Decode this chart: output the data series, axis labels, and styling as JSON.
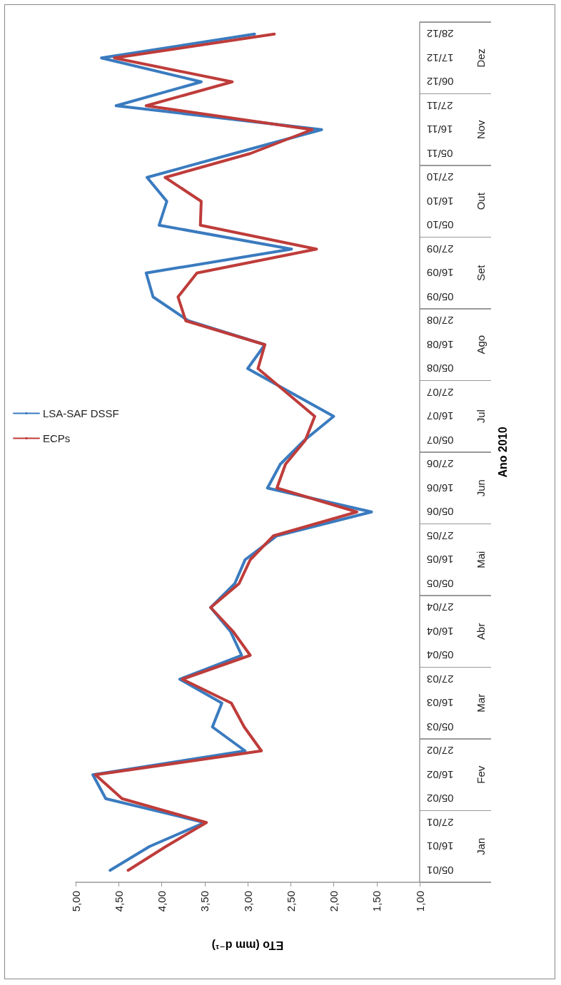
{
  "chart_data": {
    "type": "line",
    "orientation": "horizontal",
    "categories": [
      "28/12",
      "17/12",
      "06/12",
      "27/11",
      "16/11",
      "05/11",
      "27/10",
      "16/10",
      "05/10",
      "27/09",
      "16/09",
      "05/09",
      "27/08",
      "16/08",
      "05/08",
      "27/07",
      "16/07",
      "05/07",
      "27/06",
      "16/06",
      "05/06",
      "27/05",
      "16/05",
      "05/05",
      "27/04",
      "16/04",
      "05/04",
      "27/03",
      "16/03",
      "05/03",
      "27/02",
      "16/02",
      "05/02",
      "27/01",
      "16/01",
      "05/01"
    ],
    "annotations": [
      "Dez",
      "Nov",
      "Out",
      "Set",
      "Ago",
      "Jul",
      "Jun",
      "Mai",
      "Abr",
      "Mar",
      "Fev",
      "Jan"
    ],
    "ylabel": "Ano 2010",
    "xlabel": "ETo (mm d⁻¹)",
    "series": [
      {
        "name": "LSA-SAF DSSF",
        "color": "#3a7bbf",
        "values": [
          2.92,
          4.7,
          3.54,
          4.53,
          2.14,
          3.16,
          4.17,
          3.94,
          4.03,
          2.49,
          4.18,
          4.1,
          3.69,
          2.8,
          3.0,
          2.5,
          2.0,
          2.34,
          2.62,
          2.77,
          1.56,
          2.66,
          3.03,
          3.15,
          3.43,
          3.2,
          3.07,
          3.79,
          3.3,
          3.41,
          3.03,
          4.8,
          4.65,
          3.5,
          4.14,
          4.6
        ]
      },
      {
        "name": "ECPs",
        "color": "#be3c3a",
        "values": [
          2.69,
          4.55,
          3.18,
          4.18,
          2.25,
          2.97,
          3.96,
          3.54,
          3.55,
          2.2,
          3.59,
          3.81,
          3.72,
          2.8,
          2.88,
          2.55,
          2.22,
          2.33,
          2.56,
          2.66,
          1.73,
          2.7,
          2.97,
          3.1,
          3.43,
          3.17,
          2.97,
          3.76,
          3.19,
          3.04,
          2.84,
          4.77,
          4.46,
          3.48,
          3.95,
          4.39
        ]
      }
    ],
    "xlim": [
      5,
      1
    ],
    "xticks": [
      {
        "value": 5,
        "label": "5,00"
      },
      {
        "value": 4.5,
        "label": "4,50"
      },
      {
        "value": 4,
        "label": "4,00"
      },
      {
        "value": 3.5,
        "label": "3,50"
      },
      {
        "value": 3,
        "label": "3,00"
      },
      {
        "value": 2.5,
        "label": "2,50"
      },
      {
        "value": 2,
        "label": "2,00"
      },
      {
        "value": 1.5,
        "label": "1,50"
      },
      {
        "value": 1,
        "label": "1,00"
      }
    ],
    "grid": false,
    "legend": "left",
    "marker": "none",
    "line_style": "solid"
  }
}
